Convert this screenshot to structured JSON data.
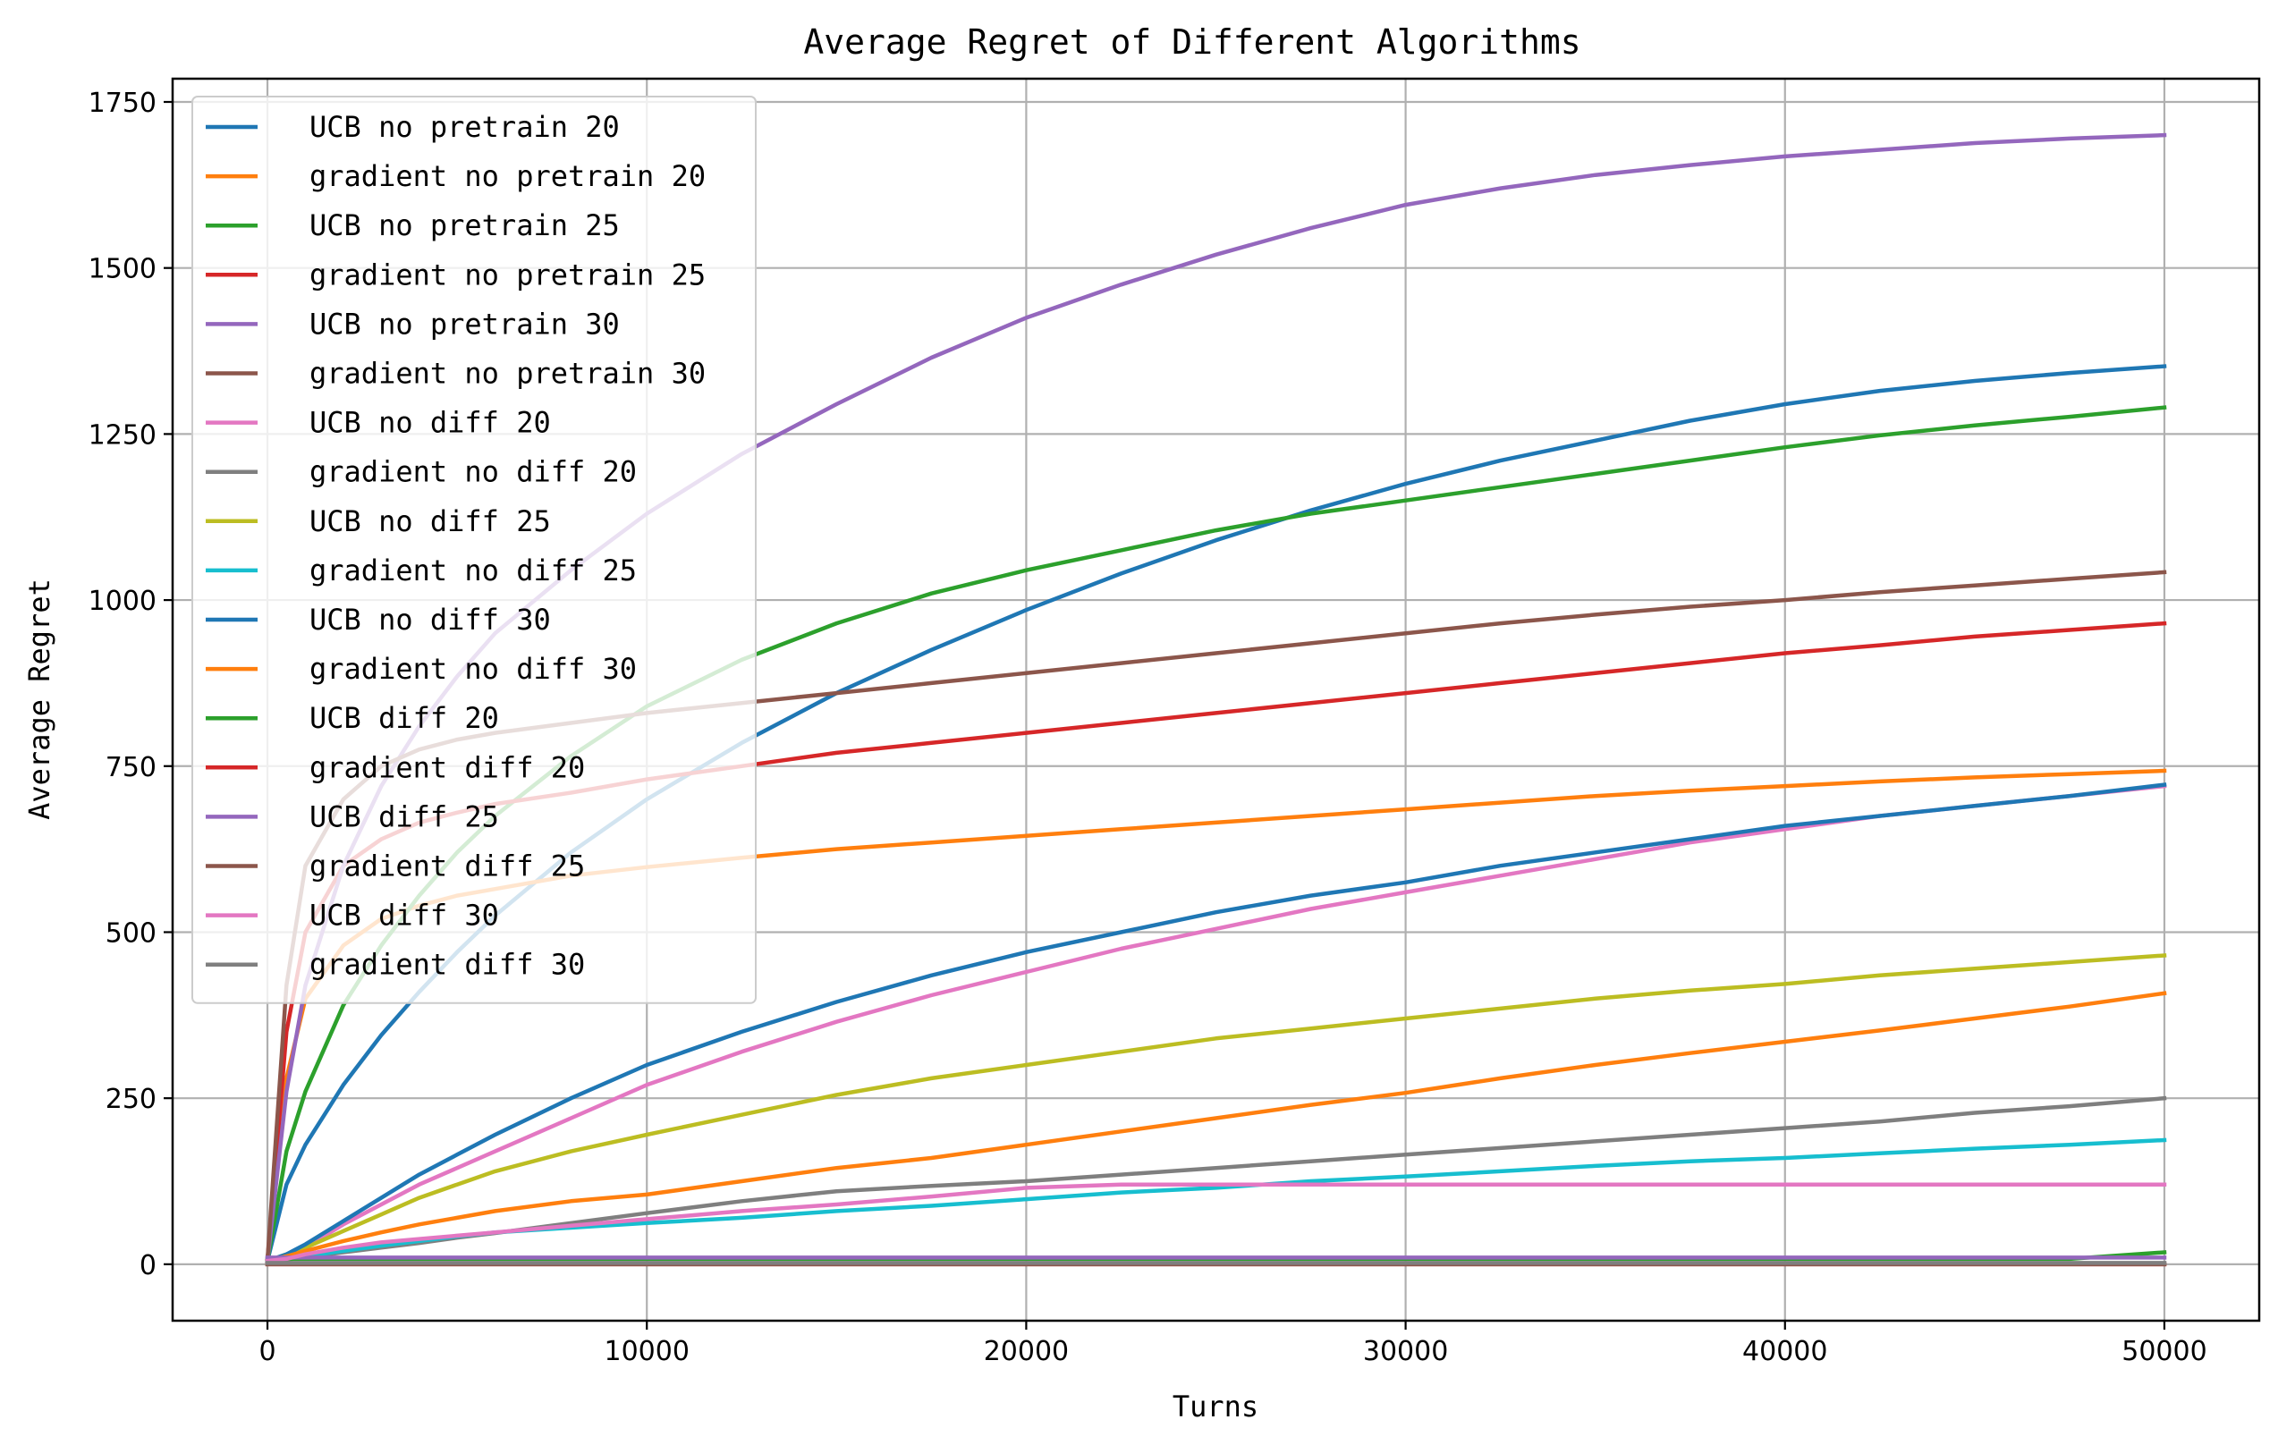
{
  "chart_data": {
    "type": "line",
    "title": "Average Regret of Different Algorithms",
    "xlabel": "Turns",
    "ylabel": "Average Regret",
    "xlim": [
      -2500,
      52500
    ],
    "ylim": [
      -85,
      1785
    ],
    "xticks": [
      0,
      10000,
      20000,
      30000,
      40000,
      50000
    ],
    "xtick_labels": [
      "0",
      "10000",
      "20000",
      "30000",
      "40000",
      "50000"
    ],
    "yticks": [
      0,
      250,
      500,
      750,
      1000,
      1250,
      1500,
      1750
    ],
    "ytick_labels": [
      "0",
      "250",
      "500",
      "750",
      "1000",
      "1250",
      "1500",
      "1750"
    ],
    "grid": true,
    "legend_position": "upper-left",
    "x": [
      0,
      500,
      1000,
      2000,
      3000,
      4000,
      5000,
      6000,
      8000,
      10000,
      12500,
      15000,
      17500,
      20000,
      22500,
      25000,
      27500,
      30000,
      32500,
      35000,
      37500,
      40000,
      42500,
      45000,
      47500,
      50000
    ],
    "series": [
      {
        "name": "UCB no pretrain 20",
        "color": "#1f77b4",
        "values": [
          5,
          120,
          180,
          270,
          345,
          410,
          470,
          525,
          620,
          700,
          785,
          860,
          925,
          985,
          1040,
          1090,
          1135,
          1175,
          1210,
          1240,
          1270,
          1295,
          1315,
          1330,
          1342,
          1352
        ]
      },
      {
        "name": "gradient no pretrain 20",
        "color": "#ff7f0e",
        "values": [
          5,
          280,
          400,
          480,
          520,
          540,
          555,
          565,
          585,
          598,
          612,
          625,
          635,
          645,
          655,
          665,
          675,
          685,
          695,
          705,
          713,
          720,
          727,
          733,
          738,
          743
        ]
      },
      {
        "name": "UCB no pretrain 25",
        "color": "#2ca02c",
        "values": [
          5,
          170,
          260,
          390,
          480,
          555,
          620,
          675,
          765,
          840,
          910,
          965,
          1010,
          1045,
          1075,
          1105,
          1130,
          1150,
          1170,
          1190,
          1210,
          1230,
          1248,
          1263,
          1276,
          1290
        ]
      },
      {
        "name": "gradient no pretrain 25",
        "color": "#d62728",
        "values": [
          5,
          350,
          500,
          600,
          640,
          665,
          680,
          693,
          710,
          730,
          750,
          770,
          785,
          800,
          815,
          830,
          845,
          860,
          875,
          890,
          905,
          920,
          932,
          945,
          955,
          965
        ]
      },
      {
        "name": "UCB no pretrain 30",
        "color": "#9467bd",
        "values": [
          5,
          260,
          420,
          600,
          720,
          810,
          885,
          950,
          1045,
          1130,
          1220,
          1295,
          1365,
          1425,
          1475,
          1520,
          1560,
          1595,
          1620,
          1640,
          1655,
          1668,
          1678,
          1688,
          1695,
          1700
        ]
      },
      {
        "name": "gradient no pretrain 30",
        "color": "#8c564b",
        "values": [
          5,
          420,
          600,
          700,
          750,
          775,
          790,
          800,
          815,
          830,
          845,
          860,
          875,
          890,
          905,
          920,
          935,
          950,
          965,
          978,
          990,
          1000,
          1012,
          1022,
          1032,
          1042
        ]
      },
      {
        "name": "UCB no diff 20",
        "color": "#e377c2",
        "values": [
          5,
          10,
          25,
          60,
          90,
          120,
          145,
          170,
          220,
          270,
          320,
          365,
          405,
          440,
          475,
          505,
          535,
          560,
          585,
          610,
          635,
          655,
          675,
          690,
          705,
          720
        ]
      },
      {
        "name": "gradient no diff 20",
        "color": "#7f7f7f",
        "values": [
          5,
          7,
          10,
          18,
          25,
          32,
          40,
          47,
          62,
          77,
          95,
          110,
          118,
          125,
          135,
          145,
          155,
          165,
          175,
          185,
          195,
          205,
          215,
          228,
          238,
          250
        ]
      },
      {
        "name": "UCB no diff 25",
        "color": "#bcbd22",
        "values": [
          5,
          15,
          25,
          50,
          75,
          100,
          120,
          140,
          170,
          195,
          225,
          255,
          280,
          300,
          320,
          340,
          355,
          370,
          385,
          400,
          412,
          422,
          435,
          445,
          455,
          465
        ]
      },
      {
        "name": "gradient no diff 25",
        "color": "#17becf",
        "values": [
          5,
          8,
          12,
          20,
          28,
          35,
          42,
          48,
          55,
          62,
          70,
          80,
          88,
          98,
          108,
          115,
          125,
          132,
          140,
          148,
          155,
          160,
          167,
          174,
          180,
          187
        ]
      },
      {
        "name": "UCB no diff 30",
        "color": "#1f77b4",
        "values": [
          5,
          15,
          30,
          65,
          100,
          135,
          165,
          195,
          250,
          300,
          350,
          395,
          435,
          470,
          500,
          530,
          555,
          575,
          600,
          620,
          640,
          660,
          675,
          690,
          705,
          722
        ]
      },
      {
        "name": "gradient no diff 30",
        "color": "#ff7f0e",
        "values": [
          5,
          12,
          20,
          35,
          48,
          60,
          70,
          80,
          95,
          105,
          125,
          145,
          160,
          180,
          200,
          220,
          240,
          258,
          280,
          300,
          318,
          335,
          352,
          370,
          388,
          408
        ]
      },
      {
        "name": "UCB diff 20",
        "color": "#2ca02c",
        "values": [
          8,
          8,
          8,
          8,
          8,
          8,
          8,
          8,
          8,
          8,
          8,
          8,
          8,
          8,
          8,
          8,
          8,
          8,
          8,
          8,
          8,
          8,
          8,
          8,
          8,
          18
        ]
      },
      {
        "name": "gradient diff 20",
        "color": "#d62728",
        "values": [
          0,
          0,
          0,
          0,
          0,
          0,
          0,
          0,
          0,
          0,
          0,
          0,
          0,
          0,
          0,
          0,
          0,
          0,
          0,
          0,
          0,
          0,
          0,
          0,
          0,
          0
        ]
      },
      {
        "name": "UCB diff 25",
        "color": "#9467bd",
        "values": [
          10,
          10,
          10,
          10,
          10,
          10,
          10,
          10,
          10,
          10,
          10,
          10,
          10,
          10,
          10,
          10,
          10,
          10,
          10,
          10,
          10,
          10,
          10,
          10,
          10,
          10
        ]
      },
      {
        "name": "gradient diff 25",
        "color": "#8c564b",
        "values": [
          0,
          0,
          0,
          0,
          0,
          0,
          0,
          0,
          0,
          0,
          0,
          0,
          0,
          0,
          0,
          0,
          0,
          0,
          0,
          0,
          0,
          0,
          0,
          0,
          0,
          0
        ]
      },
      {
        "name": "UCB diff 30",
        "color": "#e377c2",
        "values": [
          5,
          8,
          15,
          25,
          33,
          38,
          43,
          48,
          58,
          68,
          80,
          90,
          102,
          115,
          120,
          120,
          120,
          120,
          120,
          120,
          120,
          120,
          120,
          120,
          120,
          120
        ]
      },
      {
        "name": "gradient diff 30",
        "color": "#7f7f7f",
        "values": [
          2,
          2,
          2,
          2,
          2,
          2,
          2,
          2,
          2,
          2,
          2,
          2,
          2,
          2,
          2,
          2,
          2,
          2,
          2,
          2,
          2,
          2,
          2,
          2,
          2,
          2
        ]
      }
    ]
  }
}
